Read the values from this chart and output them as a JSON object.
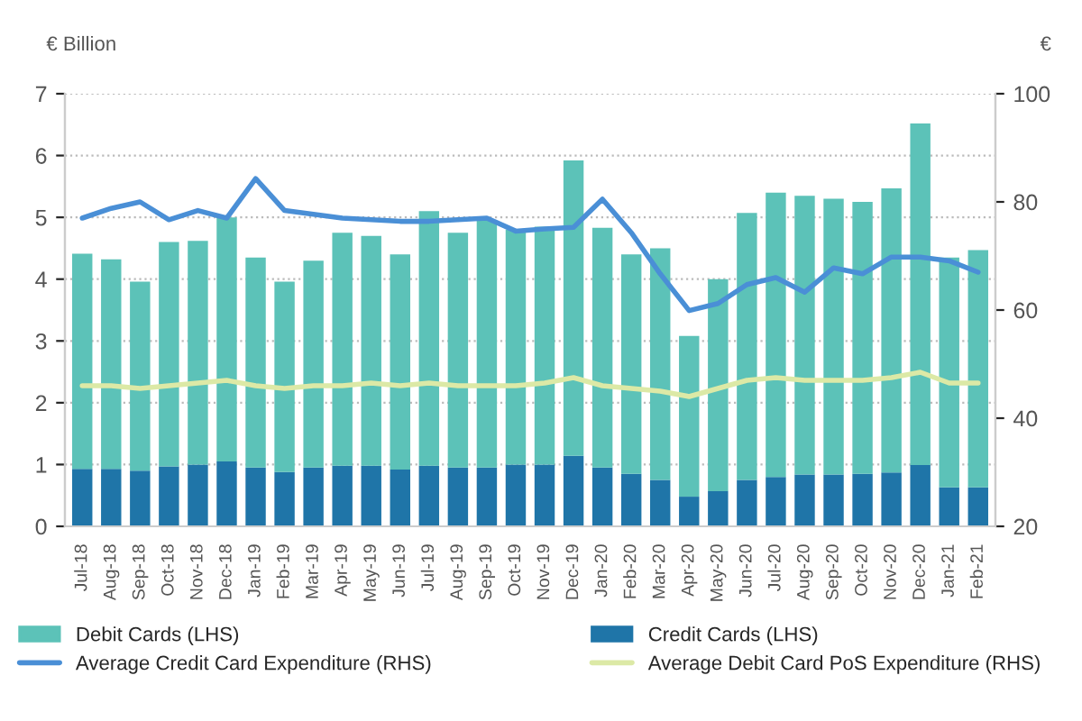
{
  "chart_data": {
    "type": "bar",
    "stacked": true,
    "ylabel": "€ Billion",
    "y2label": "€",
    "categories": [
      "Jul-18",
      "Aug-18",
      "Sep-18",
      "Oct-18",
      "Nov-18",
      "Dec-18",
      "Jan-19",
      "Feb-19",
      "Mar-19",
      "Apr-19",
      "May-19",
      "Jun-19",
      "Jul-19",
      "Aug-19",
      "Sep-19",
      "Oct-19",
      "Nov-19",
      "Dec-19",
      "Jan-20",
      "Feb-20",
      "Mar-20",
      "Apr-20",
      "May-20",
      "Jun-20",
      "Jul-20",
      "Aug-20",
      "Sep-20",
      "Oct-20",
      "Nov-20",
      "Dec-20",
      "Jan-21",
      "Feb-21"
    ],
    "series": [
      {
        "name": "Credit Cards (LHS)",
        "color": "#1f75a8",
        "values": [
          0.93,
          0.93,
          0.9,
          0.97,
          1.0,
          1.05,
          0.95,
          0.88,
          0.95,
          0.98,
          0.98,
          0.92,
          0.98,
          0.95,
          0.95,
          1.0,
          1.0,
          1.14,
          0.95,
          0.85,
          0.75,
          0.48,
          0.57,
          0.75,
          0.8,
          0.84,
          0.84,
          0.85,
          0.87,
          0.99,
          0.63,
          0.63
        ]
      },
      {
        "name": "Debit Cards (LHS)",
        "color": "#5cc2b8",
        "values": [
          3.48,
          3.39,
          3.06,
          3.63,
          3.62,
          3.95,
          3.4,
          3.08,
          3.35,
          3.77,
          3.72,
          3.48,
          4.12,
          3.8,
          4.0,
          3.8,
          3.85,
          4.78,
          3.88,
          3.55,
          3.75,
          2.6,
          3.43,
          4.32,
          4.6,
          4.51,
          4.46,
          4.4,
          4.6,
          5.53,
          3.72,
          3.84
        ]
      },
      {
        "name": "Average Credit Card Expenditure (RHS)",
        "type": "line",
        "axis": "y2",
        "color": "#4a8fd6",
        "values": [
          77,
          78.8,
          80,
          76.7,
          78.4,
          77,
          84.3,
          78.4,
          77.7,
          77,
          76.7,
          76.4,
          76.4,
          76.7,
          77,
          74.6,
          75,
          75.3,
          80.5,
          74.3,
          66.7,
          59.9,
          61.2,
          64.7,
          66,
          63.3,
          67.8,
          66.7,
          69.8,
          69.8,
          69.1,
          67
        ]
      },
      {
        "name": "Average Debit Card PoS Expenditure (RHS)",
        "type": "line",
        "axis": "y2",
        "color": "#dce9a6",
        "values": [
          46,
          46,
          45.5,
          46,
          46.5,
          47,
          46,
          45.5,
          46,
          46,
          46.5,
          46,
          46.5,
          46,
          46,
          46,
          46.5,
          47.5,
          46,
          45.5,
          45,
          44,
          45.5,
          47,
          47.5,
          47,
          47,
          47,
          47.5,
          48.5,
          46.5,
          46.5
        ]
      }
    ],
    "ylim": [
      0,
      7
    ],
    "yticks": [
      0,
      1,
      2,
      3,
      4,
      5,
      6,
      7
    ],
    "y2lim": [
      20,
      100
    ],
    "y2ticks": [
      20,
      40,
      60,
      80,
      100
    ],
    "grid": "y",
    "legend": "bottom"
  }
}
